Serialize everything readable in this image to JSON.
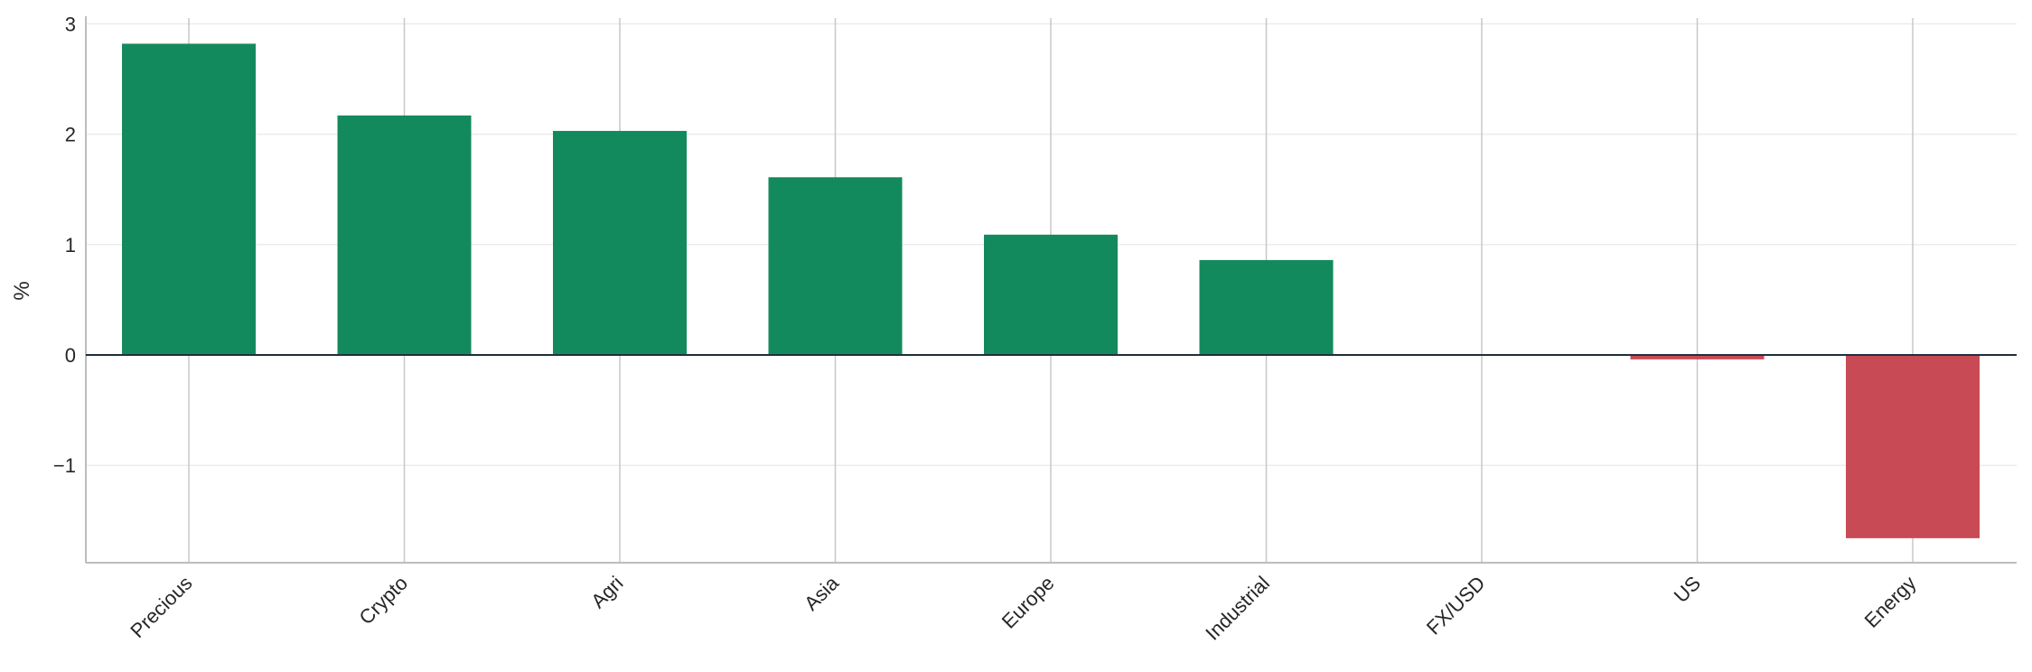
{
  "chart_data": {
    "type": "bar",
    "title": "",
    "xlabel": "",
    "ylabel": "%",
    "categories": [
      "Precious",
      "Crypto",
      "Agri",
      "Asia",
      "Europe",
      "Industrial",
      "FX/USD",
      "US",
      "Energy"
    ],
    "values": [
      2.82,
      2.17,
      2.03,
      1.61,
      1.09,
      0.86,
      0.0,
      -0.04,
      -1.66
    ],
    "ylim": [
      -1.9,
      3.05
    ],
    "yticks": [
      -1,
      0,
      1,
      2,
      3
    ],
    "ytick_labels": [
      "−1",
      "0",
      "1",
      "2",
      "3"
    ],
    "grid": true,
    "colors": {
      "positive": "#138a5e",
      "negative": "#c84a55",
      "zero_line": "#1f2f3d",
      "grid_vertical": "#c8c8c8",
      "grid_horizontal": "#ececec",
      "axis": "#bdbdbd"
    }
  }
}
